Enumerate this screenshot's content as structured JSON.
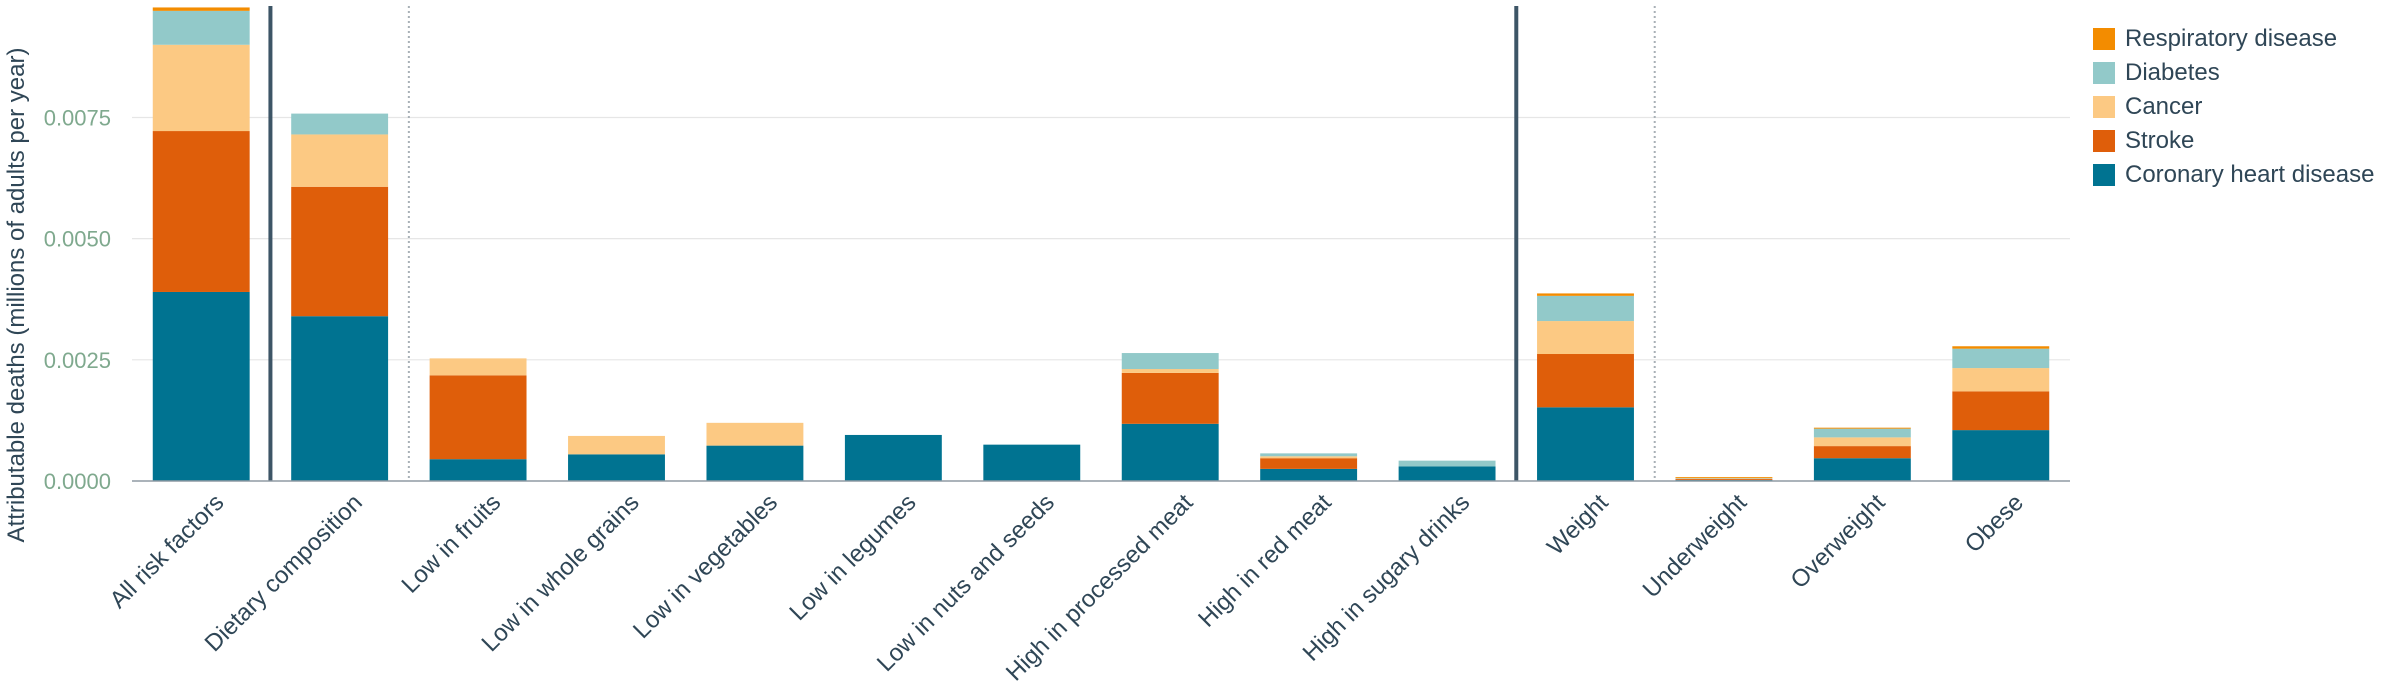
{
  "chart_data": {
    "type": "bar",
    "stacked": true,
    "ylabel": "Attributable deaths (millions of adults per year)",
    "xlabel": "",
    "ylim": [
      0,
      0.0098
    ],
    "yticks": [
      "0.0000",
      "0.0025",
      "0.0050",
      "0.0075"
    ],
    "grid": true,
    "legend_position": "top-right",
    "categories": [
      "All risk factors",
      "Dietary composition",
      "Low in fruits",
      "Low in whole grains",
      "Low in vegetables",
      "Low in legumes",
      "Low in nuts and seeds",
      "High in processed meat",
      "High in red meat",
      "High in sugary drinks",
      "Weight",
      "Underweight",
      "Overweight",
      "Obese"
    ],
    "series": [
      {
        "name": "Coronary heart disease",
        "color": "#007391",
        "values": [
          0.0039,
          0.0034,
          0.00045,
          0.00055,
          0.00073,
          0.00095,
          0.00075,
          0.00118,
          0.00025,
          0.0003,
          0.00152,
          2e-05,
          0.00047,
          0.00105
        ]
      },
      {
        "name": "Stroke",
        "color": "#df5e0a",
        "values": [
          0.00332,
          0.00267,
          0.00173,
          0,
          0,
          0,
          0,
          0.00105,
          0.00022,
          0,
          0.0011,
          2e-05,
          0.00025,
          0.0008
        ]
      },
      {
        "name": "Cancer",
        "color": "#fcc983",
        "values": [
          0.00178,
          0.00108,
          0.00035,
          0.00038,
          0.00047,
          0,
          0,
          8e-05,
          4e-05,
          0,
          0.00068,
          1e-05,
          0.00018,
          0.00048
        ]
      },
      {
        "name": "Diabetes",
        "color": "#92c9c9",
        "values": [
          0.0007,
          0.00043,
          0,
          0,
          0,
          0,
          0,
          0.00033,
          6e-05,
          0.00012,
          0.00052,
          1e-05,
          0.00018,
          0.0004
        ]
      },
      {
        "name": "Respiratory disease",
        "color": "#f38c00",
        "values": [
          7e-05,
          0,
          0,
          0,
          0,
          0,
          0,
          0,
          0,
          0,
          5e-05,
          2e-05,
          2e-05,
          5e-05
        ]
      }
    ],
    "separators": [
      {
        "after_index": 0,
        "style": "solid"
      },
      {
        "after_index": 1,
        "style": "dotted"
      },
      {
        "after_index": 9,
        "style": "solid"
      },
      {
        "after_index": 10,
        "style": "dotted"
      }
    ]
  },
  "legend": {
    "items": [
      {
        "label": "Respiratory disease",
        "color": "#f38c00"
      },
      {
        "label": "Diabetes",
        "color": "#92c9c9"
      },
      {
        "label": "Cancer",
        "color": "#fcc983"
      },
      {
        "label": "Stroke",
        "color": "#df5e0a"
      },
      {
        "label": "Coronary heart disease",
        "color": "#007391"
      }
    ]
  }
}
